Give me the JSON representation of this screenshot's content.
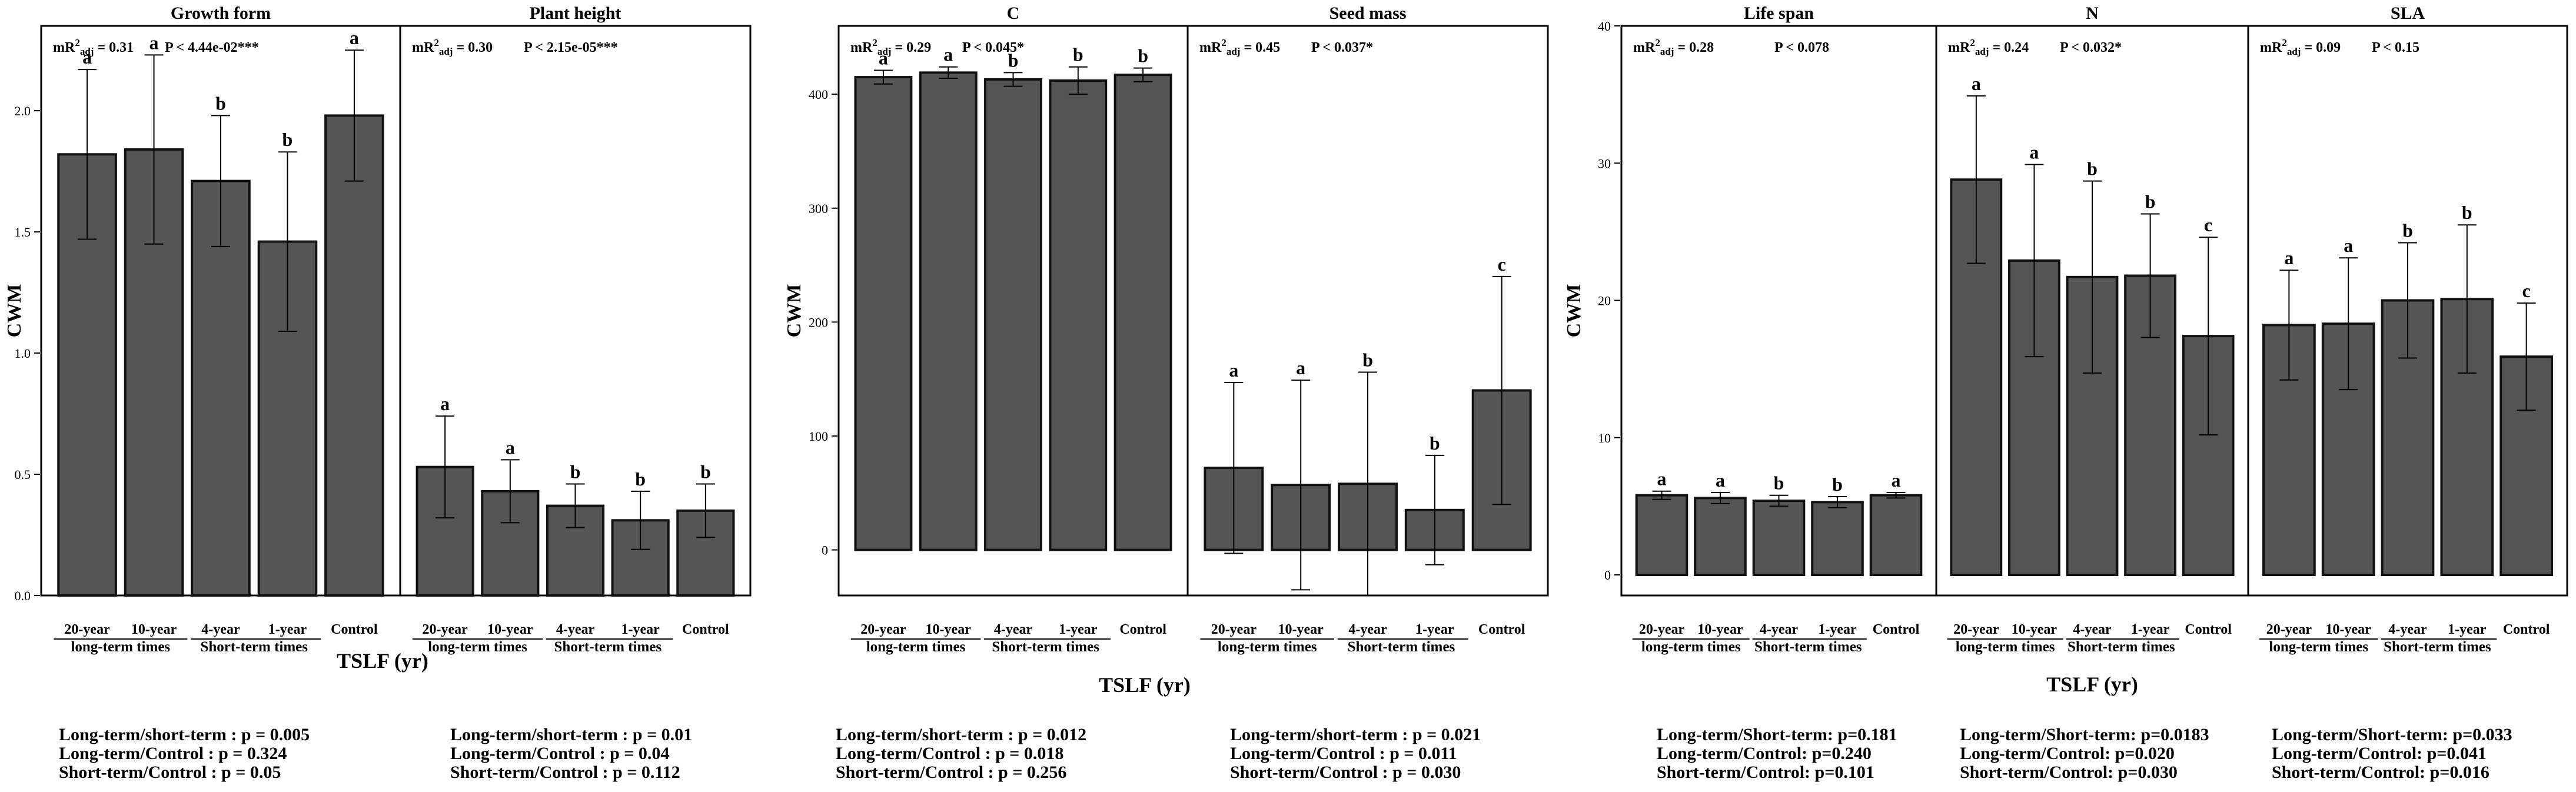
{
  "chart_data": [
    {
      "type": "bar",
      "ylabel": "CWM",
      "xlabel": "TSLF (yr)",
      "categories": [
        "20-year",
        "10-year",
        "4-year",
        "1-year",
        "Control"
      ],
      "groups": [
        "long-term times",
        "Short-term times"
      ],
      "y_ticks": [
        "0.0",
        "0.5",
        "1.0",
        "1.5",
        "2.0"
      ],
      "ylim": [
        0,
        2.35
      ],
      "panels": [
        {
          "title": "Growth form",
          "stat_r2": "mR²adj = 0.31",
          "stat_p": "P < 4.44e-02***",
          "values": [
            1.82,
            1.84,
            1.71,
            1.46,
            1.98
          ],
          "errors": [
            0.35,
            0.39,
            0.27,
            0.37,
            0.27
          ],
          "letters": [
            "a",
            "a",
            "b",
            "b",
            "a"
          ]
        },
        {
          "title": "Plant height",
          "stat_r2": "mR²adj = 0.30",
          "stat_p": "P < 2.15e-05***",
          "values": [
            0.53,
            0.43,
            0.37,
            0.31,
            0.35
          ],
          "errors": [
            0.21,
            0.13,
            0.09,
            0.12,
            0.11
          ],
          "letters": [
            "a",
            "a",
            "b",
            "b",
            "b"
          ]
        }
      ],
      "pvalues": [
        [
          "Long-term/short-term : p = 0.005",
          "Long-term/Control : p = 0.324",
          "Short-term/Control : p = 0.05"
        ],
        [
          "Long-term/short-term : p = 0.01",
          "Long-term/Control : p = 0.04",
          "Short-term/Control : p = 0.112"
        ]
      ]
    },
    {
      "type": "bar",
      "ylabel": "CWM",
      "xlabel": "TSLF (yr)",
      "categories": [
        "20-year",
        "10-year",
        "4-year",
        "1-year",
        "Control"
      ],
      "groups": [
        "long-term times",
        "Short-term times"
      ],
      "y_ticks": [
        "0",
        "100",
        "200",
        "300",
        "400"
      ],
      "ylim": [
        -40,
        460
      ],
      "panels": [
        {
          "title": "C",
          "stat_r2": "mR²adj = 0.29",
          "stat_p": "P < 0.045*",
          "values": [
            415,
            419,
            413,
            412,
            417
          ],
          "errors": [
            6,
            5,
            6,
            12,
            6
          ],
          "letters": [
            "a",
            "a",
            "b",
            "b",
            "b"
          ]
        },
        {
          "title": "Seed mass",
          "stat_r2": "mR²adj = 0.45",
          "stat_p": "P < 0.037*",
          "values": [
            72,
            57,
            58,
            35,
            140
          ],
          "errors": [
            75,
            92,
            98,
            48,
            100
          ],
          "letters": [
            "a",
            "a",
            "b",
            "b",
            "c"
          ]
        }
      ],
      "pvalues": [
        [
          "Long-term/short-term : p = 0.012",
          "Long-term/Control : p = 0.018",
          "Short-term/Control : p = 0.256"
        ],
        [
          "Long-term/short-term : p = 0.021",
          "Long-term/Control : p = 0.011",
          "Short-term/Control : p = 0.030"
        ]
      ]
    },
    {
      "type": "bar",
      "ylabel": "CWM",
      "xlabel": "TSLF (yr)",
      "categories": [
        "20-year",
        "10-year",
        "4-year",
        "1-year",
        "Control"
      ],
      "groups": [
        "long-term times",
        "Short-term times"
      ],
      "y_ticks": [
        "0",
        "10",
        "20",
        "30",
        "40"
      ],
      "ylim": [
        -1.5,
        40
      ],
      "panels": [
        {
          "title": "Life span",
          "stat_r2": "mR²adj = 0.28",
          "stat_p": "P < 0.078",
          "values": [
            5.8,
            5.6,
            5.4,
            5.3,
            5.8
          ],
          "errors": [
            0.3,
            0.4,
            0.4,
            0.4,
            0.2
          ],
          "letters": [
            "a",
            "a",
            "b",
            "b",
            "a"
          ]
        },
        {
          "title": "N",
          "stat_r2": "mR²adj = 0.24",
          "stat_p": "P < 0.032*",
          "values": [
            28.8,
            22.9,
            21.7,
            21.8,
            17.4
          ],
          "errors": [
            6.1,
            7.0,
            7.0,
            4.5,
            7.2
          ],
          "letters": [
            "a",
            "a",
            "b",
            "b",
            "c"
          ]
        },
        {
          "title": "SLA",
          "stat_r2": "mR²adj = 0.09",
          "stat_p": "P < 0.15",
          "values": [
            18.2,
            18.3,
            20.0,
            20.1,
            15.9
          ],
          "errors": [
            4.0,
            4.8,
            4.2,
            5.4,
            3.9
          ],
          "letters": [
            "a",
            "a",
            "b",
            "b",
            "c"
          ]
        }
      ],
      "pvalues": [
        [
          "Long-term/Short-term: p=0.181",
          "Long-term/Control: p=0.240",
          "Short-term/Control: p=0.101"
        ],
        [
          "Long-term/Short-term: p=0.0183",
          "Long-term/Control: p=0.020",
          "Short-term/Control: p=0.030"
        ],
        [
          "Long-term/Short-term: p=0.033",
          "Long-term/Control: p=0.041",
          "Short-term/Control: p=0.016"
        ]
      ]
    }
  ]
}
